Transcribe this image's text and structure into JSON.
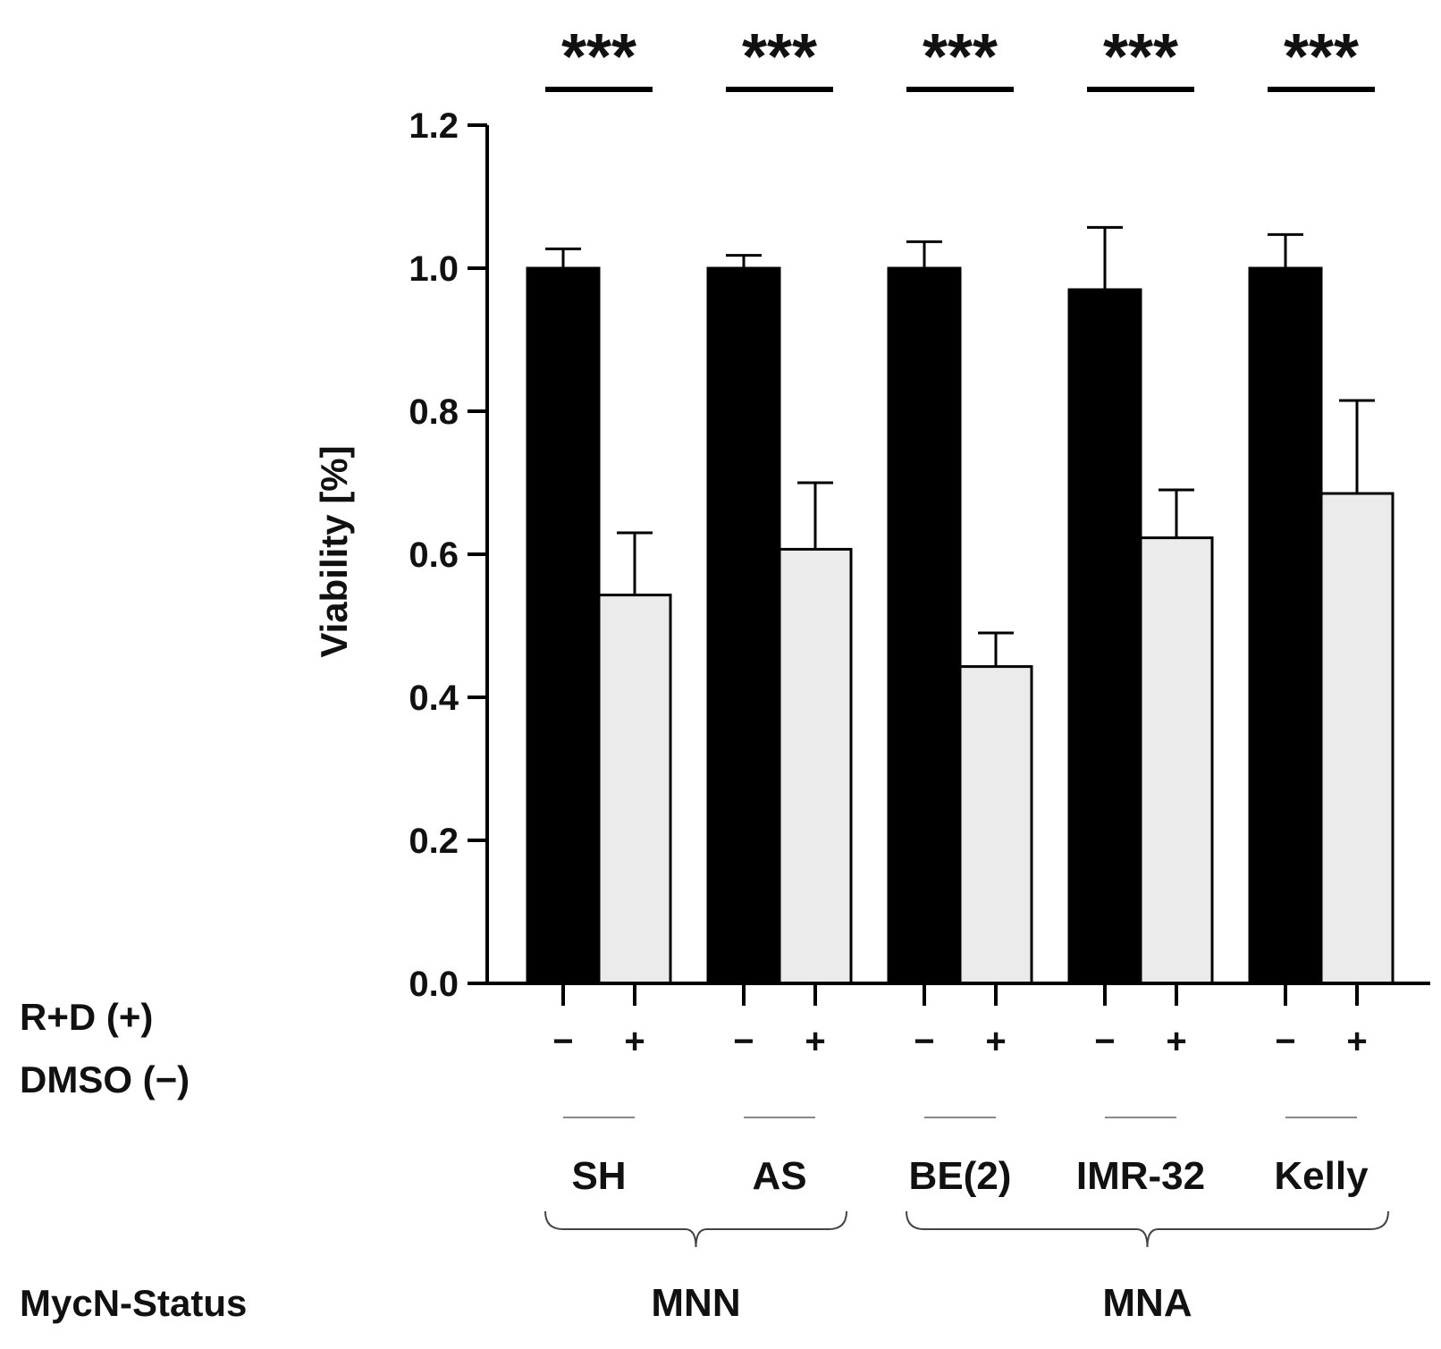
{
  "chart_data": {
    "type": "bar",
    "ylabel": "Viability [%]",
    "ylim": [
      0,
      1.2
    ],
    "yticks": [
      "0.0",
      "0.2",
      "0.4",
      "0.6",
      "0.8",
      "1.0",
      "1.2"
    ],
    "categories": [
      "SH",
      "AS",
      "BE(2)",
      "IMR-32",
      "Kelly"
    ],
    "series": [
      {
        "name": "DMSO (−)",
        "sign": "−",
        "color": "#000000",
        "values": [
          1.0,
          1.0,
          1.0,
          0.97,
          1.0
        ],
        "errors": [
          0.027,
          0.018,
          0.037,
          0.087,
          0.047
        ]
      },
      {
        "name": "R+D (+)",
        "sign": "+",
        "color": "#ebebeb",
        "values": [
          0.543,
          0.607,
          0.443,
          0.623,
          0.685
        ],
        "errors": [
          0.087,
          0.093,
          0.047,
          0.067,
          0.13
        ]
      }
    ],
    "significance": [
      "***",
      "***",
      "***",
      "***",
      "***"
    ],
    "row_labels": {
      "treatment_plus": "R+D (+)",
      "treatment_minus": "DMSO (−)",
      "status": "MycN-Status"
    },
    "groups": [
      {
        "label": "MNN",
        "categories": [
          "SH",
          "AS"
        ]
      },
      {
        "label": "MNA",
        "categories": [
          "BE(2)",
          "IMR-32",
          "Kelly"
        ]
      }
    ]
  }
}
